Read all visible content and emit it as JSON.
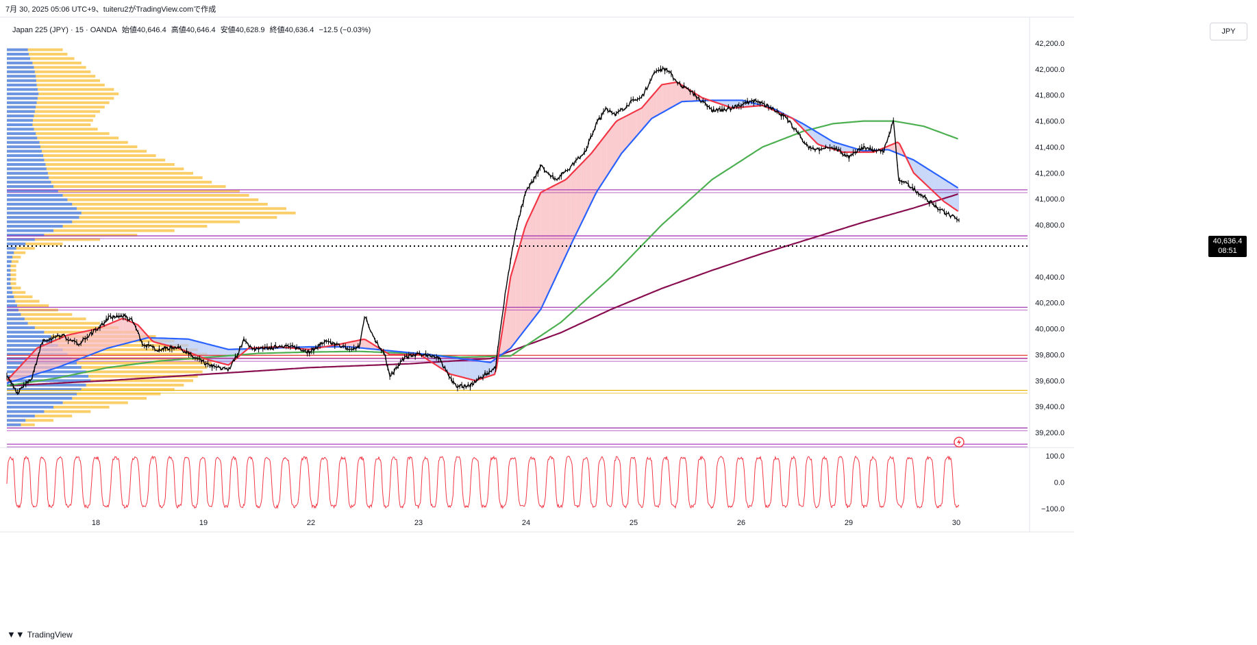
{
  "caption": "7月 30, 2025 05:06 UTC+9、tuiteru2がTradingView.comで作成",
  "symbol": {
    "name": "Japan 225 (JPY) · 15 · OANDA",
    "open": "始値40,646.4",
    "high": "高値40,646.4",
    "low": "安値40,628.9",
    "close": "終値40,636.4",
    "change": "−12.5 (−0.03%)"
  },
  "currency": "JPY",
  "last_price": {
    "value": "40,636.4",
    "countdown": "08:51"
  },
  "brand": "TradingView",
  "brand_logo": "tradingview-logo-icon",
  "colors": {
    "candle": "#000000",
    "ema_fast": "#f23645",
    "ema_mid": "#2962ff",
    "ema_slow": "#4caf50",
    "ema_long": "#880e4f",
    "fill_bull": "#f8bbc0",
    "fill_bear": "#b7c9f5",
    "hline": "#9c27b0",
    "hline_red": "#e53935",
    "hline_orange": "#e5b300",
    "oscillator": "#f23645",
    "vp_up": "#5b8def",
    "vp_down": "#f9c74f"
  },
  "chart_data": [
    {
      "type": "line",
      "title": "",
      "x_tick_labels": [
        "18",
        "19",
        "22",
        "23",
        "24",
        "25",
        "26",
        "29",
        "30"
      ],
      "y_tick_labels": [
        "42,200.0",
        "42,000.0",
        "41,800.0",
        "41,600.0",
        "41,400.0",
        "41,200.0",
        "41,000.0",
        "40,800.0",
        "40,400.0",
        "40,200.0",
        "40,000.0",
        "39,800.0",
        "39,600.0",
        "39,400.0",
        "39,200.0"
      ],
      "ylim": [
        39070,
        42290
      ],
      "xlim": [
        0,
        9.45
      ],
      "grid": false,
      "series": [
        {
          "key": "price",
          "style": "candles",
          "points": [
            [
              0,
              39650
            ],
            [
              0.1,
              39500
            ],
            [
              0.25,
              39620
            ],
            [
              0.35,
              39900
            ],
            [
              0.55,
              39950
            ],
            [
              0.7,
              39880
            ],
            [
              0.9,
              40000
            ],
            [
              1.0,
              40080
            ],
            [
              1.15,
              40100
            ],
            [
              1.25,
              40060
            ],
            [
              1.35,
              39880
            ],
            [
              1.5,
              39840
            ],
            [
              1.7,
              39860
            ],
            [
              1.85,
              39780
            ],
            [
              2.0,
              39720
            ],
            [
              2.1,
              39700
            ],
            [
              2.2,
              39680
            ],
            [
              2.3,
              39820
            ],
            [
              2.35,
              39910
            ],
            [
              2.45,
              39840
            ],
            [
              2.6,
              39850
            ],
            [
              2.75,
              39870
            ],
            [
              2.9,
              39850
            ],
            [
              3.0,
              39820
            ],
            [
              3.15,
              39900
            ],
            [
              3.3,
              39870
            ],
            [
              3.4,
              39840
            ],
            [
              3.5,
              39860
            ],
            [
              3.55,
              40100
            ],
            [
              3.65,
              39920
            ],
            [
              3.75,
              39800
            ],
            [
              3.8,
              39630
            ],
            [
              3.95,
              39780
            ],
            [
              4.05,
              39800
            ],
            [
              4.2,
              39800
            ],
            [
              4.3,
              39760
            ],
            [
              4.45,
              39560
            ],
            [
              4.6,
              39560
            ],
            [
              4.75,
              39650
            ],
            [
              4.85,
              39700
            ],
            [
              4.95,
              40300
            ],
            [
              5.05,
              40750
            ],
            [
              5.15,
              41050
            ],
            [
              5.3,
              41250
            ],
            [
              5.45,
              41150
            ],
            [
              5.6,
              41250
            ],
            [
              5.75,
              41380
            ],
            [
              5.85,
              41580
            ],
            [
              5.95,
              41700
            ],
            [
              6.05,
              41650
            ],
            [
              6.2,
              41750
            ],
            [
              6.3,
              41780
            ],
            [
              6.45,
              42000
            ],
            [
              6.55,
              42000
            ],
            [
              6.65,
              41900
            ],
            [
              6.8,
              41820
            ],
            [
              7.0,
              41680
            ],
            [
              7.2,
              41700
            ],
            [
              7.4,
              41760
            ],
            [
              7.6,
              41700
            ],
            [
              7.75,
              41610
            ],
            [
              7.95,
              41400
            ],
            [
              8.05,
              41380
            ],
            [
              8.2,
              41400
            ],
            [
              8.35,
              41320
            ],
            [
              8.5,
              41400
            ],
            [
              8.7,
              41360
            ],
            [
              8.8,
              41600
            ],
            [
              8.85,
              41150
            ],
            [
              9.0,
              41080
            ],
            [
              9.15,
              40980
            ],
            [
              9.3,
              40900
            ],
            [
              9.45,
              40840
            ]
          ]
        },
        {
          "key": "ema_fast",
          "color": "#f23645",
          "points": [
            [
              0,
              39600
            ],
            [
              0.3,
              39850
            ],
            [
              0.6,
              39950
            ],
            [
              0.9,
              40000
            ],
            [
              1.15,
              40080
            ],
            [
              1.3,
              40030
            ],
            [
              1.45,
              39900
            ],
            [
              1.7,
              39850
            ],
            [
              2.0,
              39760
            ],
            [
              2.2,
              39720
            ],
            [
              2.4,
              39850
            ],
            [
              2.7,
              39860
            ],
            [
              3.0,
              39840
            ],
            [
              3.3,
              39880
            ],
            [
              3.55,
              39920
            ],
            [
              3.8,
              39800
            ],
            [
              4.1,
              39800
            ],
            [
              4.4,
              39650
            ],
            [
              4.65,
              39600
            ],
            [
              4.85,
              39650
            ],
            [
              5.0,
              40400
            ],
            [
              5.15,
              40800
            ],
            [
              5.3,
              41050
            ],
            [
              5.55,
              41150
            ],
            [
              5.8,
              41350
            ],
            [
              6.05,
              41600
            ],
            [
              6.3,
              41700
            ],
            [
              6.5,
              41880
            ],
            [
              6.65,
              41900
            ],
            [
              6.9,
              41780
            ],
            [
              7.2,
              41700
            ],
            [
              7.5,
              41720
            ],
            [
              7.8,
              41620
            ],
            [
              8.05,
              41420
            ],
            [
              8.3,
              41360
            ],
            [
              8.6,
              41360
            ],
            [
              8.85,
              41440
            ],
            [
              9.0,
              41200
            ],
            [
              9.3,
              40980
            ],
            [
              9.45,
              40900
            ]
          ]
        },
        {
          "key": "ema_mid",
          "color": "#2962ff",
          "points": [
            [
              0,
              39580
            ],
            [
              0.5,
              39700
            ],
            [
              1.0,
              39850
            ],
            [
              1.4,
              39930
            ],
            [
              1.8,
              39920
            ],
            [
              2.2,
              39840
            ],
            [
              2.6,
              39850
            ],
            [
              3.0,
              39860
            ],
            [
              3.4,
              39860
            ],
            [
              3.8,
              39830
            ],
            [
              4.2,
              39800
            ],
            [
              4.6,
              39760
            ],
            [
              4.8,
              39740
            ],
            [
              5.0,
              39850
            ],
            [
              5.3,
              40150
            ],
            [
              5.6,
              40650
            ],
            [
              5.85,
              41050
            ],
            [
              6.1,
              41350
            ],
            [
              6.4,
              41620
            ],
            [
              6.7,
              41750
            ],
            [
              7.0,
              41760
            ],
            [
              7.3,
              41760
            ],
            [
              7.6,
              41700
            ],
            [
              7.9,
              41580
            ],
            [
              8.2,
              41440
            ],
            [
              8.5,
              41370
            ],
            [
              8.75,
              41380
            ],
            [
              9.0,
              41300
            ],
            [
              9.45,
              41080
            ]
          ]
        },
        {
          "key": "ema_slow",
          "color": "#4caf50",
          "points": [
            [
              0,
              39560
            ],
            [
              0.5,
              39620
            ],
            [
              1.0,
              39700
            ],
            [
              1.5,
              39750
            ],
            [
              2.0,
              39780
            ],
            [
              2.5,
              39810
            ],
            [
              3.0,
              39820
            ],
            [
              3.5,
              39825
            ],
            [
              4.0,
              39810
            ],
            [
              4.5,
              39780
            ],
            [
              5.0,
              39790
            ],
            [
              5.5,
              40050
            ],
            [
              6.0,
              40400
            ],
            [
              6.5,
              40800
            ],
            [
              7.0,
              41150
            ],
            [
              7.5,
              41400
            ],
            [
              7.9,
              41520
            ],
            [
              8.2,
              41580
            ],
            [
              8.5,
              41600
            ],
            [
              8.8,
              41600
            ],
            [
              9.1,
              41560
            ],
            [
              9.45,
              41460
            ]
          ]
        },
        {
          "key": "ema_long",
          "color": "#880e4f",
          "points": [
            [
              0,
              39560
            ],
            [
              1.0,
              39600
            ],
            [
              2.0,
              39650
            ],
            [
              3.0,
              39700
            ],
            [
              4.0,
              39730
            ],
            [
              4.8,
              39770
            ],
            [
              5.5,
              39970
            ],
            [
              6.0,
              40150
            ],
            [
              6.5,
              40310
            ],
            [
              7.0,
              40450
            ],
            [
              7.5,
              40580
            ],
            [
              8.0,
              40700
            ],
            [
              8.5,
              40820
            ],
            [
              9.0,
              40930
            ],
            [
              9.45,
              41040
            ]
          ]
        }
      ],
      "horizontal_lines": [
        {
          "y": 41070,
          "color": "#9c27b0"
        },
        {
          "y": 40715,
          "color": "#9c27b0"
        },
        {
          "y": 40165,
          "color": "#9c27b0"
        },
        {
          "y": 39795,
          "color": "#e53935"
        },
        {
          "y": 39770,
          "color": "#9c27b0"
        },
        {
          "y": 39525,
          "color": "#e5b300"
        },
        {
          "y": 39235,
          "color": "#9c27b0"
        },
        {
          "y": 39110,
          "color": "#9c27b0"
        }
      ],
      "last_price_value": 40636.4,
      "volume_profile": {
        "y_step": 20,
        "y_start": 40960,
        "rows_up": [
          45,
          47,
          50,
          55,
          58,
          60,
          62,
          63,
          64,
          66,
          68,
          66,
          64,
          62,
          60,
          58,
          56,
          55,
          58,
          62,
          65,
          70,
          72,
          75,
          78,
          80,
          83,
          85,
          88,
          90,
          95,
          100,
          110,
          120,
          130,
          140,
          150,
          160,
          155,
          140,
          120,
          100,
          80,
          60,
          40,
          20,
          15,
          12,
          10,
          8,
          8,
          8,
          8,
          8,
          10,
          12,
          15,
          18,
          22,
          25,
          30,
          38,
          45,
          60,
          80,
          95,
          100,
          110,
          120,
          130,
          140,
          150,
          160,
          170,
          175,
          180,
          170,
          160,
          150,
          140,
          120,
          100,
          80,
          60,
          40,
          30
        ],
        "rows_total": [
          120,
          130,
          145,
          160,
          170,
          180,
          190,
          200,
          210,
          230,
          240,
          230,
          220,
          210,
          200,
          190,
          185,
          180,
          195,
          220,
          240,
          260,
          280,
          300,
          320,
          340,
          360,
          380,
          400,
          420,
          440,
          470,
          500,
          520,
          540,
          560,
          600,
          620,
          580,
          500,
          430,
          360,
          280,
          200,
          120,
          60,
          40,
          30,
          25,
          20,
          20,
          20,
          20,
          20,
          30,
          40,
          55,
          70,
          90,
          110,
          140,
          170,
          200,
          240,
          280,
          320,
          360,
          390,
          410,
          430,
          440,
          440,
          430,
          420,
          410,
          400,
          380,
          360,
          330,
          300,
          260,
          220,
          180,
          140,
          100,
          60
        ]
      }
    },
    {
      "type": "line",
      "title": "",
      "y_tick_labels": [
        "100.0",
        "0.0",
        "−100.0"
      ],
      "ylim": [
        -110,
        110
      ],
      "series": [
        {
          "key": "oscillator",
          "color": "#f23645",
          "cycles": 55
        }
      ]
    }
  ]
}
